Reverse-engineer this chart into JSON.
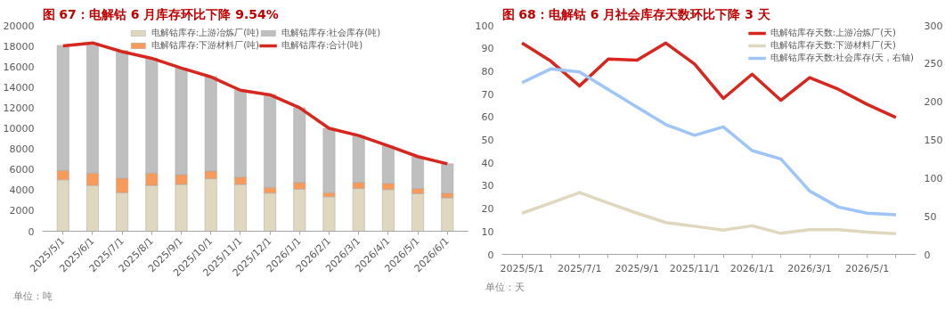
{
  "chart_data": [
    {
      "type": "bar",
      "title": "图 67：电解钴 6 月库存环比下降 9.54%",
      "stacked": true,
      "legend": "top",
      "categories": [
        "2025/5/1",
        "2025/6/1",
        "2025/7/1",
        "2025/8/1",
        "2025/9/1",
        "2025/10/1",
        "2025/11/1",
        "2025/12/1",
        "2026/1/1",
        "2026/2/1",
        "2026/3/1",
        "2026/4/1",
        "2026/5/1",
        "2026/6/1"
      ],
      "ylim": [
        0,
        20000
      ],
      "yticks": [
        0,
        2000,
        4000,
        6000,
        8000,
        10000,
        12000,
        14000,
        16000,
        18000,
        20000
      ],
      "series": [
        {
          "name": "电解钴库存:上游冶炼厂(吨)",
          "color": "#e0d7bf",
          "values": [
            5000,
            4450,
            3750,
            4450,
            4550,
            5100,
            4550,
            3700,
            4100,
            3350,
            4150,
            4050,
            3650,
            3250
          ]
        },
        {
          "name": "电解钴库存:下游材料厂(吨)",
          "color": "#f79a5a",
          "values": [
            900,
            1200,
            1400,
            1200,
            950,
            750,
            700,
            550,
            650,
            400,
            600,
            600,
            500,
            450
          ]
        },
        {
          "name": "电解钴库存:社会库存(吨)",
          "color": "#bfbfbf",
          "values": [
            12150,
            12650,
            12400,
            11150,
            10350,
            9200,
            8450,
            9050,
            7250,
            6250,
            4550,
            3650,
            3050,
            2850
          ]
        },
        {
          "name": "电解钴库存:合计(吨)",
          "type": "line",
          "color": "#d7261e",
          "values": [
            18000,
            18300,
            17450,
            16800,
            15850,
            15000,
            13700,
            13250,
            12000,
            10000,
            9300,
            8300,
            7250,
            6550
          ]
        }
      ],
      "annotations": [
        "单位：吨"
      ]
    },
    {
      "type": "line",
      "title": "图 68：电解钴 6 月社会库存天数环比下降 3 天",
      "legend": "top right",
      "categories": [
        "2025/5/1",
        null,
        "2025/7/1",
        null,
        "2025/9/1",
        null,
        "2025/11/1",
        null,
        "2026/1/1",
        null,
        "2026/3/1",
        null,
        "2026/5/1",
        null
      ],
      "ylim": [
        0,
        100
      ],
      "yticks": [
        0,
        10,
        20,
        30,
        40,
        50,
        60,
        70,
        80,
        90,
        100
      ],
      "y2lim": [
        0,
        300
      ],
      "y2ticks": [
        0,
        50,
        100,
        150,
        200,
        250,
        300
      ],
      "series": [
        {
          "name": "电解钴库存天数:上游冶炼厂(天)",
          "color": "#d7261e",
          "values": [
            92.3,
            84.4,
            73.6,
            85.3,
            84.8,
            92.3,
            83.1,
            68.1,
            78.7,
            67.3,
            77.2,
            72.1,
            65.5,
            59.8
          ]
        },
        {
          "name": "电解钴库存天数:下游材料厂(天)",
          "color": "#e0d7bf",
          "values": [
            18,
            22.4,
            27,
            22.4,
            18,
            13.9,
            12.3,
            10.6,
            12.5,
            9.2,
            10.8,
            10.8,
            9.7,
            9
          ]
        },
        {
          "name": "电解钴库存天数:社会库存(天，右轴)",
          "color": "#9fc5f8",
          "axis": "y2",
          "values": [
            225,
            243,
            239,
            216,
            193,
            170,
            156,
            167,
            136,
            125,
            83,
            62,
            54,
            52
          ]
        }
      ],
      "annotations": [
        "单位：天"
      ]
    }
  ]
}
